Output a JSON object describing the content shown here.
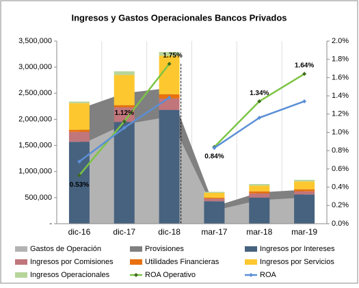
{
  "chart_data": {
    "type": "combo",
    "title": "Ingresos y Gastos Operacionales Bancos Privados",
    "categories": [
      "dic-16",
      "dic-17",
      "dic-18",
      "mar-17",
      "mar-18",
      "mar-19"
    ],
    "ylim": [
      0,
      3500000
    ],
    "yticks": [
      {
        "value": 0,
        "label": "-"
      },
      {
        "value": 500000,
        "label": "500,000"
      },
      {
        "value": 1000000,
        "label": "1,000,000"
      },
      {
        "value": 1500000,
        "label": "1,500,000"
      },
      {
        "value": 2000000,
        "label": "2,000,000"
      },
      {
        "value": 2500000,
        "label": "2,500,000"
      },
      {
        "value": 3000000,
        "label": "3,000,000"
      },
      {
        "value": 3500000,
        "label": "3,500,000"
      }
    ],
    "y2lim": [
      0,
      2.0
    ],
    "y2ticks": [
      {
        "value": 0,
        "label": "0.0%"
      },
      {
        "value": 0.2,
        "label": "0.2%"
      },
      {
        "value": 0.4,
        "label": "0.4%"
      },
      {
        "value": 0.6,
        "label": "0.6%"
      },
      {
        "value": 0.8,
        "label": "0.8%"
      },
      {
        "value": 1.0,
        "label": "1.0%"
      },
      {
        "value": 1.2,
        "label": "1.2%"
      },
      {
        "value": 1.4,
        "label": "1.4%"
      },
      {
        "value": 1.6,
        "label": "1.6%"
      },
      {
        "value": 1.8,
        "label": "1.8%"
      },
      {
        "value": 2.0,
        "label": "2.0%"
      }
    ],
    "series": [
      {
        "name": "Gastos de Operación",
        "kind": "area",
        "color": "#b3b3b3",
        "values": [
          1500000,
          1900000,
          2050000,
          250000,
          450000,
          500000
        ]
      },
      {
        "name": "Provisiones",
        "kind": "area",
        "color": "#808080",
        "values": [
          700000,
          600000,
          550000,
          80000,
          150000,
          150000
        ]
      },
      {
        "name": "Ingresos por Intereses",
        "kind": "bar",
        "color": "#46627f",
        "values": [
          1570000,
          1950000,
          2180000,
          430000,
          500000,
          560000
        ]
      },
      {
        "name": "Ingresos por Comisiones",
        "kind": "bar",
        "color": "#c0767b",
        "values": [
          190000,
          280000,
          220000,
          50000,
          80000,
          60000
        ]
      },
      {
        "name": "Utilidades Financieras",
        "kind": "bar",
        "color": "#e8700f",
        "values": [
          40000,
          40000,
          80000,
          20000,
          40000,
          40000
        ]
      },
      {
        "name": "Ingresos por Servicios",
        "kind": "bar",
        "color": "#fdc82f",
        "values": [
          510000,
          580000,
          740000,
          90000,
          110000,
          150000
        ]
      },
      {
        "name": "Ingresos Operacionales",
        "kind": "bar",
        "color": "#b7d59b",
        "values": [
          30000,
          70000,
          70000,
          20000,
          30000,
          30000
        ]
      },
      {
        "name": "ROA Operativo",
        "kind": "line",
        "axis": "y2",
        "color": "#7cc443",
        "marker": "#3d6b1d",
        "values": [
          0.53,
          1.12,
          1.75,
          0.84,
          1.34,
          1.64
        ],
        "value_labels": [
          "0.53%",
          "1.12%",
          "1.75%",
          "0.84%",
          "1.34%",
          "1.64%"
        ]
      },
      {
        "name": "ROA",
        "kind": "line",
        "axis": "y2",
        "color": "#5b8fd6",
        "marker": "#5b8fd6",
        "values": [
          0.68,
          1.05,
          1.38,
          0.83,
          1.16,
          1.34
        ]
      }
    ]
  }
}
